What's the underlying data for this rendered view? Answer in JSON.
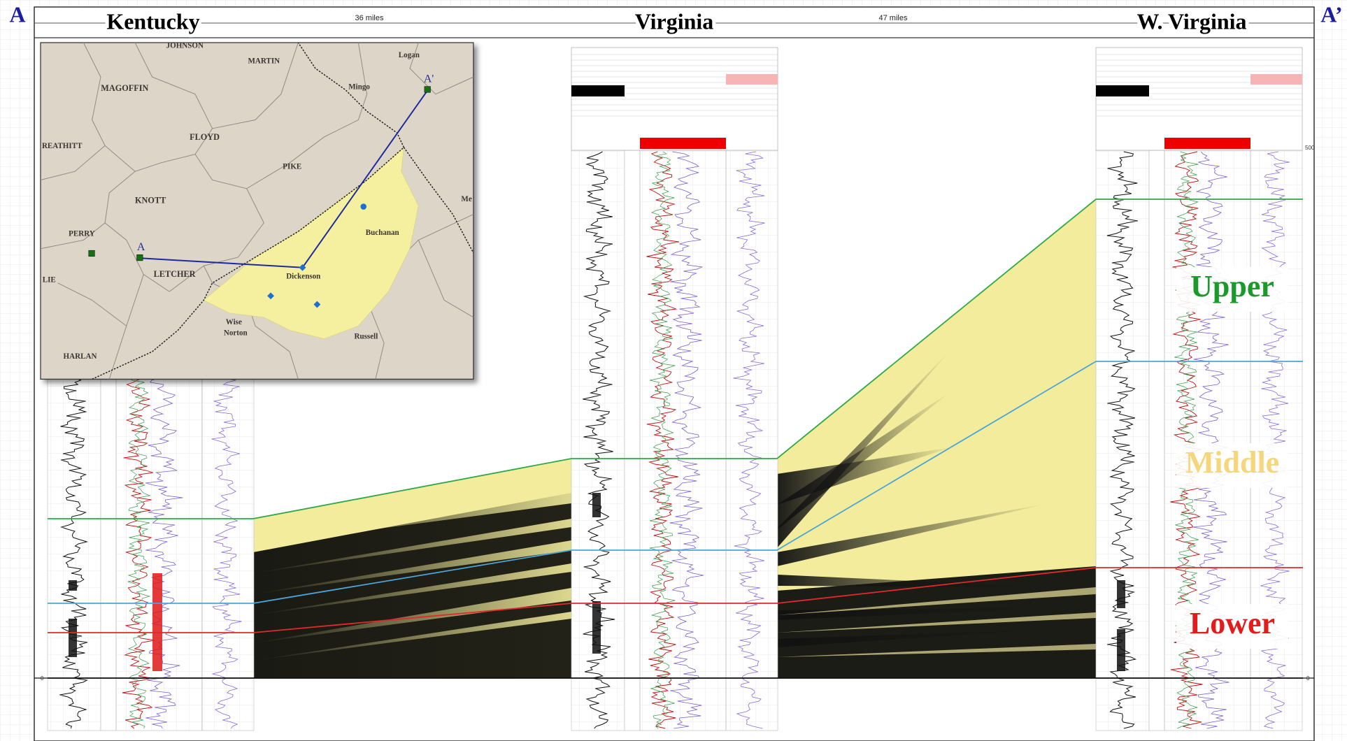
{
  "section": {
    "start_label": "A",
    "end_label": "A’",
    "wells": [
      "Kentucky",
      "Virginia",
      "W. Virginia"
    ],
    "distances": [
      "36 miles",
      "47 miles"
    ]
  },
  "zones": [
    "Upper",
    "Middle",
    "Lower"
  ],
  "depth_scale": {
    "right_top": "500",
    "right_bottom": "0",
    "left_bottom": "0"
  },
  "map": {
    "labels": [
      "JOHNSON",
      "MARTIN",
      "Logan",
      "MAGOFFIN",
      "Mingo",
      "REATHITT",
      "FLOYD",
      "PIKE",
      "KNOTT",
      "Me",
      "Buchanan",
      "PERRY",
      "LETCHER",
      "Dickenson",
      "LIE",
      "Wise",
      "Norton",
      "Russell",
      "HARLAN"
    ],
    "markers": [
      "A",
      "A'"
    ]
  }
}
